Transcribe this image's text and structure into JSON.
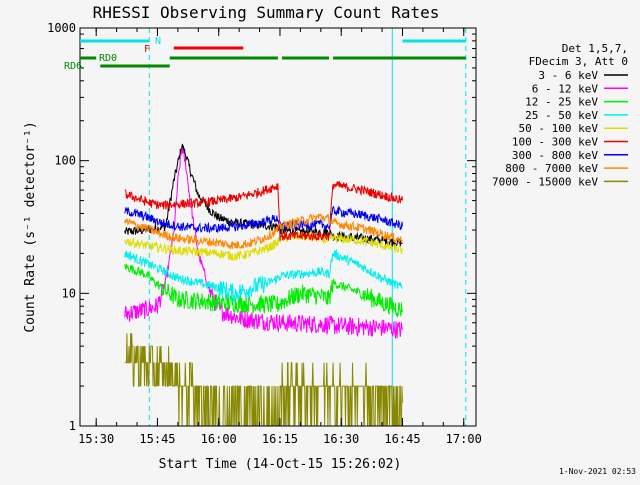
{
  "chart_data": {
    "type": "line",
    "title": "RHESSI Observing Summary Count Rates",
    "xlabel": "Start Time (14-Oct-15 15:26:02)",
    "ylabel": "Count Rate (s⁻¹ detector⁻¹)",
    "yscale": "log",
    "ylim": [
      1,
      1000
    ],
    "xlim": [
      "15:26:02",
      "17:03:00"
    ],
    "x_ticks": [
      "15:30",
      "15:45",
      "16:00",
      "16:15",
      "16:30",
      "16:45",
      "17:00"
    ],
    "y_ticks": [
      "1",
      "10",
      "100",
      "1000"
    ],
    "legend_header": [
      "Det 1,5,7,",
      "FDecim 3, Att 0"
    ],
    "legend_position": "right",
    "footer_date": "1-Nov-2021 02:53",
    "annotations": {
      "N": {
        "label": "N",
        "color": "#00e5e5",
        "spans": [
          [
            "15:26:02",
            "15:43:00"
          ],
          [
            "16:45:00",
            "17:00:30"
          ]
        ]
      },
      "F": {
        "label": "F",
        "color": "#ee0000",
        "spans": [
          [
            "15:49:00",
            "16:06:00"
          ]
        ]
      },
      "RD0": {
        "label": "RD0",
        "color": "#008800",
        "spans": [
          [
            "15:26:02",
            "15:30:00"
          ],
          [
            "15:48:00",
            "16:14:30"
          ],
          [
            "16:15:30",
            "16:27:00"
          ],
          [
            "16:28:00",
            "17:00:30"
          ]
        ]
      },
      "RD6": {
        "label": "RD6",
        "color": "#008800",
        "spans": [
          [
            "15:31:00",
            "15:48:00"
          ]
        ]
      }
    },
    "vlines_dashed": [
      "15:43:00",
      "17:00:30"
    ],
    "vlines_solid": [
      "15:26:02",
      "16:42:30"
    ],
    "series": [
      {
        "name": "3 - 6 keV",
        "color": "#000000",
        "x": [
          "15:37:00",
          "15:42:00",
          "15:45:00",
          "15:47:00",
          "15:49:00",
          "15:51:00",
          "15:52:00",
          "15:53:00",
          "15:55:00",
          "15:58:00",
          "16:00:00",
          "16:04:00",
          "16:08:00",
          "16:14:30",
          "16:15:00",
          "16:20:00",
          "16:27:00",
          "16:28:00",
          "16:35:00",
          "16:40:00",
          "16:45:00"
        ],
        "y": [
          29,
          30,
          31,
          32,
          70,
          130,
          110,
          85,
          55,
          42,
          37,
          34,
          33,
          32,
          30,
          29,
          29,
          27,
          26,
          25,
          24
        ]
      },
      {
        "name": "6 - 12 keV",
        "color": "#ff00ff",
        "x": [
          "15:37:00",
          "15:42:00",
          "15:45:00",
          "15:47:00",
          "15:49:00",
          "15:50:00",
          "15:51:00",
          "15:52:00",
          "15:53:00",
          "15:55:00",
          "15:58:00",
          "16:00:00",
          "16:05:00",
          "16:10:00",
          "16:14:30",
          "16:15:00",
          "16:27:00",
          "16:28:00",
          "16:40:00",
          "16:45:00"
        ],
        "y": [
          7,
          7.5,
          8,
          12,
          28,
          70,
          125,
          90,
          50,
          20,
          10,
          7.5,
          6.5,
          6.2,
          6.1,
          6,
          5.8,
          5.7,
          5.5,
          5.3
        ]
      },
      {
        "name": "12 - 25 keV",
        "color": "#00ee00",
        "x": [
          "15:37:00",
          "15:42:00",
          "15:46:00",
          "15:50:00",
          "15:55:00",
          "16:00:00",
          "16:05:00",
          "16:10:00",
          "16:14:30",
          "16:15:00",
          "16:20:00",
          "16:25:00",
          "16:27:00",
          "16:28:00",
          "16:35:00",
          "16:40:00",
          "16:45:00"
        ],
        "y": [
          16,
          14,
          11,
          9,
          8.8,
          8.5,
          8.4,
          8.3,
          8.2,
          8.5,
          10,
          9.5,
          9,
          12,
          10,
          8.5,
          7.5
        ]
      },
      {
        "name": "25 - 50 keV",
        "color": "#00eeee",
        "x": [
          "15:37:00",
          "15:42:00",
          "15:46:00",
          "15:50:00",
          "15:55:00",
          "16:00:00",
          "16:04:00",
          "16:08:00",
          "16:12:00",
          "16:14:30",
          "16:15:00",
          "16:20:00",
          "16:25:00",
          "16:27:00",
          "16:28:00",
          "16:35:00",
          "16:40:00",
          "16:45:00"
        ],
        "y": [
          20,
          17,
          15,
          13,
          12,
          11,
          10,
          11,
          12,
          13,
          13.5,
          14,
          14.5,
          14,
          20,
          16,
          13,
          11
        ]
      },
      {
        "name": "50 - 100 keV",
        "color": "#dddd00",
        "x": [
          "15:37:00",
          "15:42:00",
          "15:46:00",
          "15:50:00",
          "15:55:00",
          "16:00:00",
          "16:04:00",
          "16:08:00",
          "16:12:00",
          "16:14:30",
          "16:15:00",
          "16:20:00",
          "16:25:00",
          "16:27:00",
          "16:28:00",
          "16:35:00",
          "16:40:00",
          "16:45:00"
        ],
        "y": [
          25,
          23,
          22,
          21,
          20.5,
          20,
          19,
          20,
          22,
          24,
          26,
          27,
          26,
          25,
          26,
          25,
          23,
          21
        ]
      },
      {
        "name": "100 - 300 keV",
        "color": "#ee0000",
        "x": [
          "15:37:00",
          "15:40:00",
          "15:43:00",
          "15:46:00",
          "15:50:00",
          "15:55:00",
          "16:00:00",
          "16:05:00",
          "16:10:00",
          "16:14:30",
          "16:15:00",
          "16:20:00",
          "16:27:00",
          "16:28:00",
          "16:35:00",
          "16:40:00",
          "16:45:00"
        ],
        "y": [
          56,
          52,
          48,
          46,
          47,
          48,
          50,
          53,
          58,
          65,
          27,
          27,
          27,
          66,
          60,
          55,
          50
        ]
      },
      {
        "name": "300 - 800 keV",
        "color": "#0000ee",
        "x": [
          "15:37:00",
          "15:42:00",
          "15:46:00",
          "15:50:00",
          "15:55:00",
          "16:00:00",
          "16:05:00",
          "16:10:00",
          "16:14:30",
          "16:15:00",
          "16:20:00",
          "16:25:00",
          "16:27:00",
          "16:28:00",
          "16:35:00",
          "16:40:00",
          "16:45:00"
        ],
        "y": [
          42,
          38,
          34,
          32,
          31,
          31,
          32,
          34,
          37,
          32,
          33,
          33,
          32,
          42,
          39,
          36,
          32
        ]
      },
      {
        "name": "800 - 7000 keV",
        "color": "#ff8800",
        "x": [
          "15:37:00",
          "15:42:00",
          "15:46:00",
          "15:50:00",
          "15:55:00",
          "16:00:00",
          "16:04:00",
          "16:08:00",
          "16:12:00",
          "16:14:30",
          "16:15:00",
          "16:20:00",
          "16:25:00",
          "16:27:00",
          "16:28:00",
          "16:35:00",
          "16:40:00",
          "16:45:00"
        ],
        "y": [
          35,
          31,
          28,
          26,
          25,
          24,
          23,
          24,
          27,
          30,
          32,
          35,
          38,
          36,
          34,
          31,
          28,
          25
        ]
      },
      {
        "name": "7000 - 15000 keV",
        "color": "#888800",
        "x": [
          "15:37:00",
          "15:40:00",
          "15:43:00",
          "15:46:00",
          "15:50:00",
          "15:53:00",
          "15:56:00",
          "16:00:00",
          "16:05:00",
          "16:10:00",
          "16:14:30",
          "16:15:00",
          "16:20:00",
          "16:25:00",
          "16:27:00",
          "16:28:00",
          "16:35:00",
          "16:40:00",
          "16:45:00"
        ],
        "y": [
          3.6,
          3.2,
          2.8,
          2.6,
          2.2,
          1.8,
          1.6,
          1.5,
          1.4,
          1.4,
          1.4,
          1.8,
          1.9,
          1.8,
          1.7,
          1.8,
          1.7,
          1.6,
          1.5
        ]
      }
    ]
  }
}
